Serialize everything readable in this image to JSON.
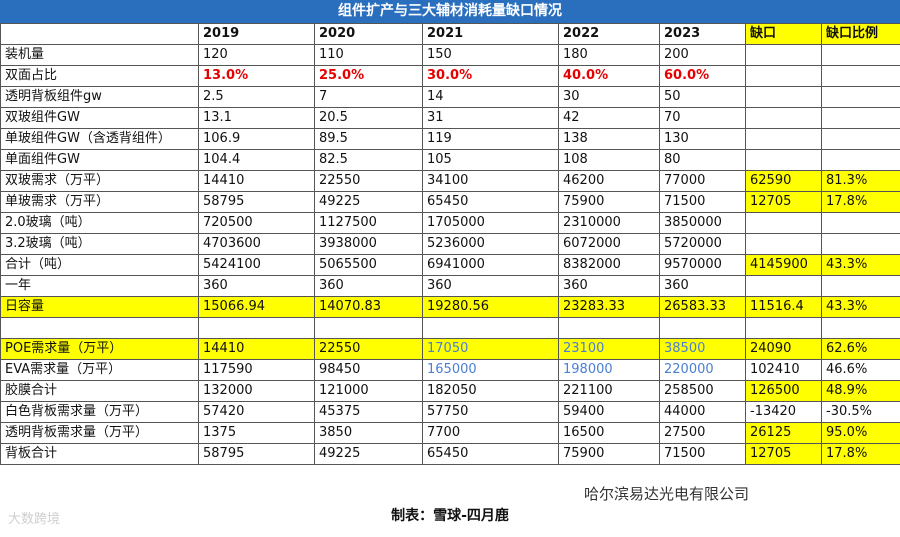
{
  "title": "组件扩产与三大辅材消耗量缺口情况",
  "header": [
    "",
    "2019",
    "2020",
    "2021",
    "2022",
    "2023",
    "缺口",
    "缺口比例"
  ],
  "rows": [
    {
      "cells": [
        "装机量",
        "120",
        "110",
        "150",
        "180",
        "200",
        "",
        ""
      ]
    },
    {
      "cells": [
        "双面占比",
        "13.0%",
        "25.0%",
        "30.0%",
        "40.0%",
        "60.0%",
        "",
        ""
      ]
    },
    {
      "cells": [
        "透明背板组件gw",
        "2.5",
        "7",
        "14",
        "30",
        "50",
        "",
        ""
      ]
    },
    {
      "cells": [
        "双玻组件GW",
        "13.1",
        "20.5",
        "31",
        "42",
        "70",
        "",
        ""
      ]
    },
    {
      "cells": [
        "单玻组件GW（含透背组件）",
        "106.9",
        "89.5",
        "119",
        "138",
        "130",
        "",
        ""
      ]
    },
    {
      "cells": [
        "单面组件GW",
        "104.4",
        "82.5",
        "105",
        "108",
        "80",
        "",
        ""
      ]
    },
    {
      "cells": [
        "双玻需求（万平）",
        "14410",
        "22550",
        "34100",
        "46200",
        "77000",
        "62590",
        "81.3%"
      ]
    },
    {
      "cells": [
        "单玻需求（万平）",
        "58795",
        "49225",
        "65450",
        "75900",
        "71500",
        "12705",
        "17.8%"
      ]
    },
    {
      "cells": [
        "2.0玻璃（吨）",
        "720500",
        "1127500",
        "1705000",
        "2310000",
        "3850000",
        "",
        ""
      ]
    },
    {
      "cells": [
        "3.2玻璃（吨）",
        "4703600",
        "3938000",
        "5236000",
        "6072000",
        "5720000",
        "",
        ""
      ]
    },
    {
      "cells": [
        "合计（吨）",
        "5424100",
        "5065500",
        "6941000",
        "8382000",
        "9570000",
        "4145900",
        "43.3%"
      ]
    },
    {
      "cells": [
        "一年",
        "360",
        "360",
        "360",
        "360",
        "360",
        "",
        ""
      ]
    },
    {
      "cells": [
        "日容量",
        "15066.94",
        "14070.83",
        "19280.56",
        "23283.33",
        "26583.33",
        "11516.4",
        "43.3%"
      ]
    },
    {
      "cells": [
        "",
        "",
        "",
        "",
        "",
        "",
        "",
        ""
      ]
    },
    {
      "cells": [
        "POE需求量（万平）",
        "14410",
        "22550",
        "17050",
        "23100",
        "38500",
        "24090",
        "62.6%"
      ]
    },
    {
      "cells": [
        "EVA需求量（万平）",
        "117590",
        "98450",
        "165000",
        "198000",
        "220000",
        "102410",
        "46.6%"
      ]
    },
    {
      "cells": [
        "胶膜合计",
        "132000",
        "121000",
        "182050",
        "221100",
        "258500",
        "126500",
        "48.9%"
      ]
    },
    {
      "cells": [
        "白色背板需求量（万平）",
        "57420",
        "45375",
        "57750",
        "59400",
        "44000",
        "-13420",
        "-30.5%"
      ]
    },
    {
      "cells": [
        "透明背板需求量（万平）",
        "1375",
        "3850",
        "7700",
        "16500",
        "27500",
        "26125",
        "95.0%"
      ]
    },
    {
      "cells": [
        "背板合计",
        "58795",
        "49225",
        "65450",
        "75900",
        "71500",
        "12705",
        "17.8%"
      ]
    }
  ],
  "footer": "制表：雪球-四月鹿",
  "watermark_left": "大数跨境",
  "watermark_right": "哈尔滨易达光电有限公司",
  "colors": {
    "title_bg": "#2a6fbe",
    "highlight": "#ffff00",
    "red": "#e60000",
    "blue": "#4a7fd4"
  }
}
